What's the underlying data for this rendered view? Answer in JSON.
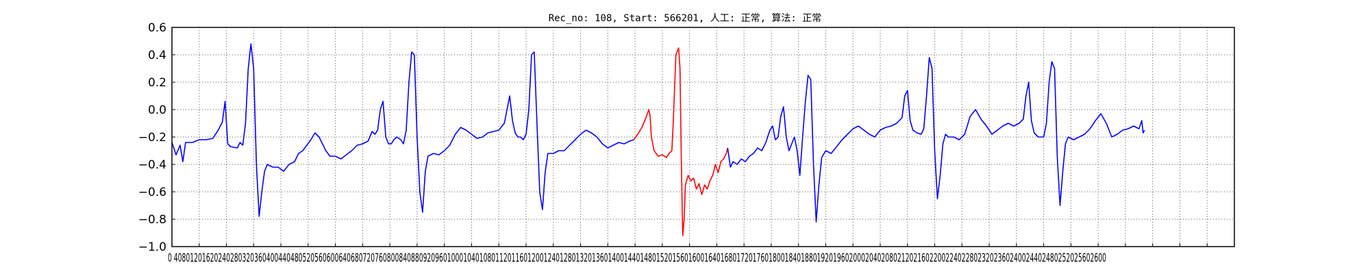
{
  "chart_data": {
    "type": "line",
    "title": "Rec_no: 108, Start: 566201, 人工: 正常, 算法: 正常",
    "xlim": [
      0,
      1560
    ],
    "ylim": [
      -1.0,
      0.6
    ],
    "grid": true,
    "x_tick_values": [
      0,
      40,
      80,
      120,
      160,
      200,
      240,
      280,
      320,
      360,
      400,
      440,
      480,
      520,
      560,
      600,
      640,
      680,
      720,
      760,
      800,
      840,
      880,
      920,
      960,
      1000,
      1040,
      1080,
      1120,
      1160,
      1200,
      1240,
      1280,
      1320,
      1360,
      1400,
      1440,
      1480,
      1520,
      1560
    ],
    "x_tick_labels_text": "0 4080120162024028032036040044048052056060064068072076080084088092096010001040108011201160120012401280132013601400144014801520156016001640168017201760180018401880192019602000204020802120216022002240228023202360240024402480252025602600",
    "y_ticks": [
      0.6,
      0.4,
      0.2,
      0.0,
      -0.2,
      -0.4,
      -0.6,
      -0.8,
      -1.0
    ],
    "y_tick_labels": [
      "0.6",
      "0.4",
      "0.2",
      "0.0",
      "−0.2",
      "−0.4",
      "−0.6",
      "−0.8",
      "−1.0"
    ],
    "colors": {
      "normal": "#0000ff",
      "highlight": "#ff0000",
      "grid": "#555555",
      "axes": "#000000"
    },
    "series": [
      {
        "color": "#0000ff",
        "points": [
          [
            0,
            -0.24
          ],
          [
            6,
            -0.33
          ],
          [
            12,
            -0.26
          ],
          [
            16,
            -0.38
          ],
          [
            20,
            -0.24
          ],
          [
            30,
            -0.24
          ],
          [
            40,
            -0.22
          ],
          [
            50,
            -0.22
          ],
          [
            60,
            -0.21
          ],
          [
            68,
            -0.15
          ],
          [
            74,
            -0.09
          ],
          [
            78,
            0.06
          ],
          [
            82,
            -0.25
          ],
          [
            86,
            -0.27
          ],
          [
            96,
            -0.28
          ],
          [
            100,
            -0.24
          ],
          [
            104,
            -0.26
          ],
          [
            108,
            -0.1
          ],
          [
            112,
            0.3
          ],
          [
            116,
            0.48
          ],
          [
            120,
            0.3
          ],
          [
            124,
            -0.4
          ],
          [
            128,
            -0.78
          ],
          [
            132,
            -0.6
          ],
          [
            136,
            -0.45
          ],
          [
            140,
            -0.4
          ],
          [
            148,
            -0.42
          ],
          [
            156,
            -0.42
          ],
          [
            164,
            -0.45
          ],
          [
            172,
            -0.4
          ],
          [
            180,
            -0.38
          ],
          [
            186,
            -0.32
          ],
          [
            192,
            -0.3
          ],
          [
            198,
            -0.26
          ],
          [
            204,
            -0.22
          ],
          [
            210,
            -0.17
          ],
          [
            216,
            -0.2
          ],
          [
            220,
            -0.24
          ],
          [
            226,
            -0.3
          ],
          [
            232,
            -0.34
          ],
          [
            240,
            -0.34
          ],
          [
            248,
            -0.36
          ],
          [
            256,
            -0.33
          ],
          [
            264,
            -0.3
          ],
          [
            272,
            -0.26
          ],
          [
            280,
            -0.25
          ],
          [
            288,
            -0.23
          ],
          [
            294,
            -0.16
          ],
          [
            298,
            -0.18
          ],
          [
            302,
            -0.15
          ],
          [
            306,
            0.0
          ],
          [
            310,
            0.06
          ],
          [
            314,
            -0.2
          ],
          [
            318,
            -0.25
          ],
          [
            322,
            -0.25
          ],
          [
            326,
            -0.22
          ],
          [
            330,
            -0.2
          ],
          [
            336,
            -0.22
          ],
          [
            340,
            -0.25
          ],
          [
            344,
            -0.15
          ],
          [
            348,
            0.2
          ],
          [
            352,
            0.42
          ],
          [
            356,
            0.4
          ],
          [
            360,
            -0.2
          ],
          [
            364,
            -0.6
          ],
          [
            368,
            -0.75
          ],
          [
            372,
            -0.45
          ],
          [
            376,
            -0.34
          ],
          [
            384,
            -0.32
          ],
          [
            392,
            -0.33
          ],
          [
            400,
            -0.3
          ],
          [
            408,
            -0.26
          ],
          [
            416,
            -0.18
          ],
          [
            424,
            -0.13
          ],
          [
            432,
            -0.15
          ],
          [
            440,
            -0.18
          ],
          [
            448,
            -0.21
          ],
          [
            456,
            -0.2
          ],
          [
            464,
            -0.17
          ],
          [
            472,
            -0.16
          ],
          [
            480,
            -0.15
          ],
          [
            488,
            -0.1
          ],
          [
            492,
            0.0
          ],
          [
            496,
            0.1
          ],
          [
            500,
            -0.08
          ],
          [
            504,
            -0.17
          ],
          [
            508,
            -0.2
          ],
          [
            512,
            -0.2
          ],
          [
            516,
            -0.22
          ],
          [
            520,
            -0.18
          ],
          [
            524,
            0.0
          ],
          [
            528,
            0.4
          ],
          [
            532,
            0.42
          ],
          [
            536,
            -0.1
          ],
          [
            540,
            -0.6
          ],
          [
            544,
            -0.73
          ],
          [
            548,
            -0.46
          ],
          [
            552,
            -0.32
          ],
          [
            560,
            -0.32
          ],
          [
            568,
            -0.3
          ],
          [
            576,
            -0.3
          ],
          [
            584,
            -0.26
          ],
          [
            592,
            -0.22
          ],
          [
            600,
            -0.18
          ],
          [
            608,
            -0.15
          ],
          [
            616,
            -0.17
          ],
          [
            624,
            -0.2
          ],
          [
            632,
            -0.25
          ],
          [
            640,
            -0.28
          ],
          [
            648,
            -0.26
          ],
          [
            656,
            -0.24
          ],
          [
            664,
            -0.25
          ],
          [
            672,
            -0.23
          ],
          [
            678,
            -0.22
          ]
        ]
      },
      {
        "color": "#ff0000",
        "points": [
          [
            678,
            -0.22
          ],
          [
            684,
            -0.18
          ],
          [
            690,
            -0.13
          ],
          [
            696,
            -0.06
          ],
          [
            700,
            0.0
          ],
          [
            702,
            -0.04
          ],
          [
            704,
            -0.2
          ],
          [
            708,
            -0.3
          ],
          [
            714,
            -0.34
          ],
          [
            720,
            -0.33
          ],
          [
            726,
            -0.35
          ],
          [
            730,
            -0.32
          ],
          [
            734,
            -0.3
          ],
          [
            736,
            -0.1
          ],
          [
            740,
            0.4
          ],
          [
            744,
            0.45
          ],
          [
            746,
            0.3
          ],
          [
            748,
            -0.4
          ],
          [
            750,
            -0.92
          ],
          [
            752,
            -0.8
          ],
          [
            754,
            -0.55
          ],
          [
            758,
            -0.48
          ],
          [
            762,
            -0.52
          ],
          [
            766,
            -0.5
          ],
          [
            770,
            -0.58
          ],
          [
            774,
            -0.54
          ],
          [
            778,
            -0.62
          ],
          [
            782,
            -0.55
          ],
          [
            786,
            -0.58
          ],
          [
            790,
            -0.52
          ],
          [
            794,
            -0.48
          ],
          [
            798,
            -0.4
          ],
          [
            802,
            -0.46
          ],
          [
            806,
            -0.38
          ],
          [
            810,
            -0.36
          ],
          [
            814,
            -0.32
          ],
          [
            816,
            -0.28
          ]
        ]
      },
      {
        "color": "#0000ff",
        "points": [
          [
            816,
            -0.28
          ],
          [
            820,
            -0.42
          ],
          [
            824,
            -0.38
          ],
          [
            830,
            -0.4
          ],
          [
            836,
            -0.36
          ],
          [
            842,
            -0.38
          ],
          [
            848,
            -0.34
          ],
          [
            854,
            -0.32
          ],
          [
            860,
            -0.28
          ],
          [
            866,
            -0.3
          ],
          [
            872,
            -0.24
          ],
          [
            878,
            -0.15
          ],
          [
            882,
            -0.12
          ],
          [
            886,
            -0.22
          ],
          [
            890,
            -0.2
          ],
          [
            894,
            -0.05
          ],
          [
            898,
            0.02
          ],
          [
            902,
            -0.2
          ],
          [
            906,
            -0.3
          ],
          [
            910,
            -0.25
          ],
          [
            914,
            -0.2
          ],
          [
            918,
            -0.3
          ],
          [
            922,
            -0.48
          ],
          [
            926,
            -0.2
          ],
          [
            930,
            0.05
          ],
          [
            934,
            0.25
          ],
          [
            938,
            0.22
          ],
          [
            942,
            -0.4
          ],
          [
            946,
            -0.82
          ],
          [
            950,
            -0.55
          ],
          [
            954,
            -0.35
          ],
          [
            960,
            -0.3
          ],
          [
            968,
            -0.32
          ],
          [
            976,
            -0.27
          ],
          [
            984,
            -0.22
          ],
          [
            992,
            -0.18
          ],
          [
            1000,
            -0.14
          ],
          [
            1008,
            -0.12
          ],
          [
            1016,
            -0.15
          ],
          [
            1024,
            -0.18
          ],
          [
            1032,
            -0.2
          ],
          [
            1040,
            -0.15
          ],
          [
            1048,
            -0.13
          ],
          [
            1056,
            -0.12
          ],
          [
            1064,
            -0.1
          ],
          [
            1072,
            -0.06
          ],
          [
            1076,
            0.1
          ],
          [
            1080,
            0.14
          ],
          [
            1084,
            -0.08
          ],
          [
            1088,
            -0.15
          ],
          [
            1094,
            -0.17
          ],
          [
            1100,
            -0.18
          ],
          [
            1104,
            -0.14
          ],
          [
            1108,
            0.1
          ],
          [
            1112,
            0.38
          ],
          [
            1116,
            0.3
          ],
          [
            1120,
            -0.3
          ],
          [
            1124,
            -0.65
          ],
          [
            1128,
            -0.48
          ],
          [
            1132,
            -0.25
          ],
          [
            1136,
            -0.18
          ],
          [
            1140,
            -0.2
          ],
          [
            1148,
            -0.2
          ],
          [
            1156,
            -0.22
          ],
          [
            1164,
            -0.18
          ],
          [
            1172,
            -0.05
          ],
          [
            1180,
            0.0
          ],
          [
            1188,
            -0.07
          ],
          [
            1196,
            -0.12
          ],
          [
            1204,
            -0.18
          ],
          [
            1212,
            -0.15
          ],
          [
            1220,
            -0.12
          ],
          [
            1228,
            -0.1
          ],
          [
            1236,
            -0.12
          ],
          [
            1244,
            -0.1
          ],
          [
            1250,
            -0.07
          ],
          [
            1254,
            0.1
          ],
          [
            1258,
            0.2
          ],
          [
            1262,
            -0.08
          ],
          [
            1266,
            -0.17
          ],
          [
            1272,
            -0.2
          ],
          [
            1280,
            -0.2
          ],
          [
            1284,
            -0.1
          ],
          [
            1288,
            0.2
          ],
          [
            1292,
            0.35
          ],
          [
            1296,
            0.3
          ],
          [
            1300,
            -0.35
          ],
          [
            1304,
            -0.7
          ],
          [
            1308,
            -0.45
          ],
          [
            1312,
            -0.25
          ],
          [
            1316,
            -0.2
          ],
          [
            1324,
            -0.22
          ],
          [
            1332,
            -0.2
          ],
          [
            1340,
            -0.18
          ],
          [
            1348,
            -0.14
          ],
          [
            1356,
            -0.08
          ],
          [
            1364,
            -0.03
          ],
          [
            1372,
            -0.1
          ],
          [
            1380,
            -0.2
          ],
          [
            1388,
            -0.18
          ],
          [
            1396,
            -0.15
          ],
          [
            1404,
            -0.14
          ],
          [
            1412,
            -0.12
          ],
          [
            1420,
            -0.14
          ],
          [
            1424,
            -0.08
          ],
          [
            1426,
            -0.17
          ],
          [
            1428,
            -0.15
          ]
        ]
      }
    ]
  }
}
